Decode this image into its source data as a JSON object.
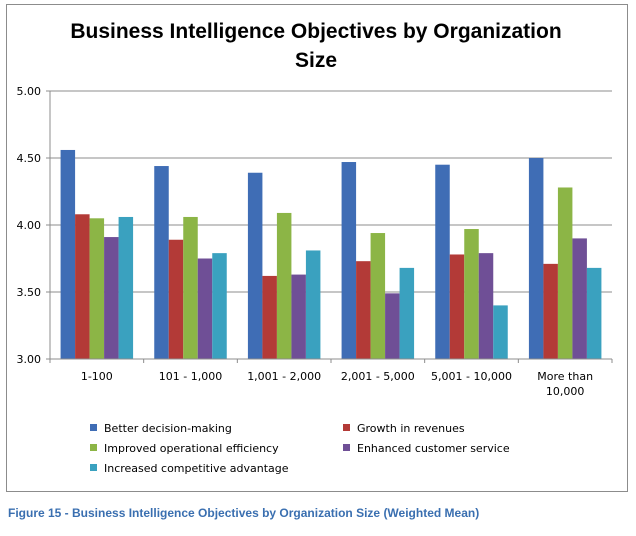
{
  "chart_data": {
    "type": "bar",
    "title_lines": [
      "Business Intelligence Objectives by Organization",
      "Size"
    ],
    "categories": [
      "1-100",
      "101 - 1,000",
      "1,001 - 2,000",
      "2,001 - 5,000",
      "5,001 - 10,000",
      "More than\n10,000"
    ],
    "y_ticks": [
      "5.00",
      "4.50",
      "4.00",
      "3.50",
      "3.00"
    ],
    "ylim": [
      3.0,
      5.0
    ],
    "grid": true,
    "legend_position": "bottom",
    "series": [
      {
        "name": "Better decision-making",
        "color": "#3f6db5",
        "values": [
          4.56,
          4.44,
          4.39,
          4.47,
          4.45,
          4.5
        ]
      },
      {
        "name": "Growth in revenues",
        "color": "#b33a37",
        "values": [
          4.08,
          3.89,
          3.62,
          3.73,
          3.78,
          3.71
        ]
      },
      {
        "name": "Improved operational efficiency",
        "color": "#8cb546",
        "values": [
          4.05,
          4.06,
          4.09,
          3.94,
          3.97,
          4.28
        ]
      },
      {
        "name": "Enhanced customer service",
        "color": "#6f4f96",
        "values": [
          3.91,
          3.75,
          3.63,
          3.49,
          3.79,
          3.9
        ]
      },
      {
        "name": "Increased competitive advantage",
        "color": "#3aa1bf",
        "values": [
          4.06,
          3.79,
          3.81,
          3.68,
          3.4,
          3.68
        ]
      }
    ]
  },
  "caption": "Figure 15 - Business Intelligence Objectives by Organization Size (Weighted Mean)"
}
